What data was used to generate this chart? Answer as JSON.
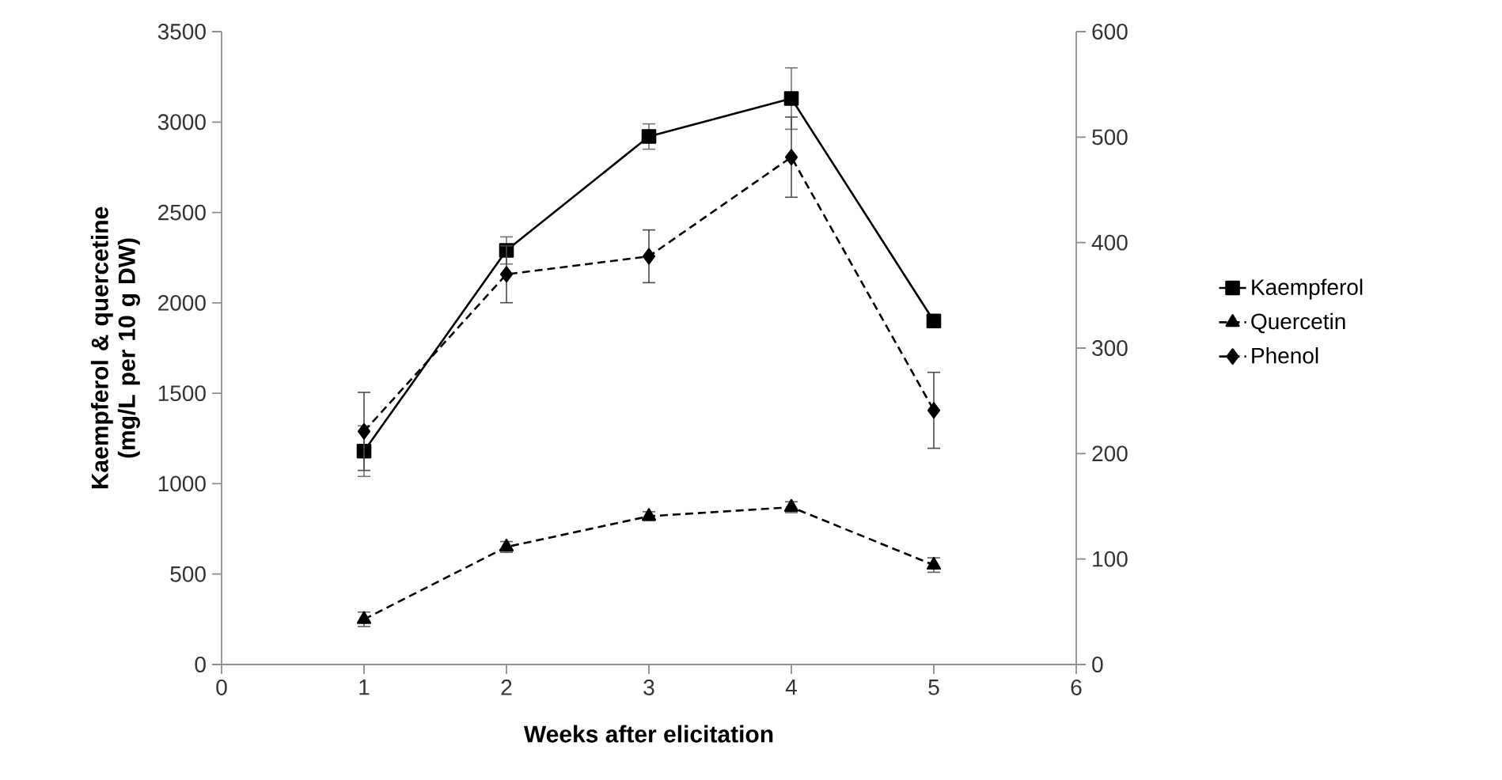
{
  "chart_data": {
    "type": "line",
    "xlabel": "Weeks after elicitation",
    "ylabel": "Kaempferol & quercetine (mg/L per 10 g DW)",
    "x": [
      1,
      2,
      3,
      4,
      5
    ],
    "series": [
      {
        "name": "Kaempferol",
        "color": "#000000",
        "marker": "square",
        "line_style": "solid",
        "values": [
          1180,
          2290,
          2920,
          3130,
          1900
        ],
        "errors": [
          140,
          75,
          70,
          170,
          null
        ]
      },
      {
        "name": "Quercetin",
        "color": "#000000",
        "marker": "triangle",
        "line_style": "dashed",
        "values": [
          250,
          650,
          820,
          870,
          550
        ],
        "errors": [
          40,
          30,
          25,
          30,
          40
        ]
      },
      {
        "name": "Phenol",
        "color": "#000000",
        "marker": "diamond",
        "line_style": "dashed",
        "axis": "y2",
        "values": [
          221,
          370,
          387,
          481,
          241
        ],
        "errors": [
          37,
          27,
          25,
          38,
          36
        ]
      }
    ],
    "xlim": [
      0,
      6
    ],
    "xticks": [
      0,
      1,
      2,
      3,
      4,
      5,
      6
    ],
    "ylim": [
      0,
      3500
    ],
    "yticks": [
      0,
      500,
      1000,
      1500,
      2000,
      2500,
      3000,
      3500
    ],
    "y2lim": [
      0,
      600
    ],
    "y2ticks": [
      0,
      100,
      200,
      300,
      400,
      500,
      600
    ],
    "grid": false,
    "legend": "right"
  }
}
